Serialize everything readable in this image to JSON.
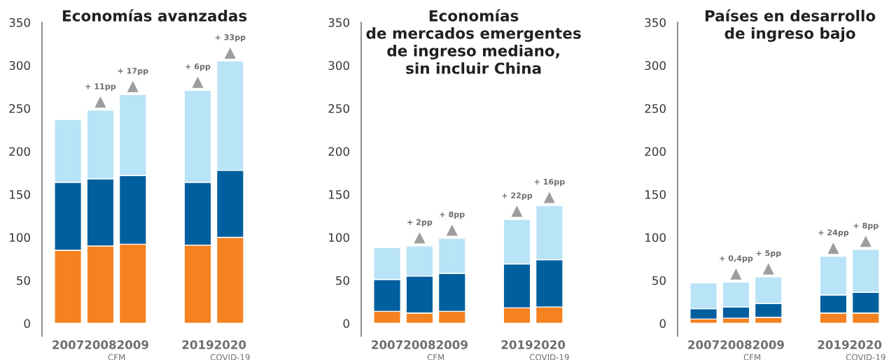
{
  "chart_data": [
    {
      "type": "bar",
      "title": "Economías avanzadas",
      "categories": [
        "2007",
        "2008",
        "2009",
        null,
        "2019",
        "2020"
      ],
      "stacked": true,
      "ylim": [
        -15,
        350
      ],
      "yticks": [
        0,
        50,
        100,
        150,
        200,
        250,
        300,
        350
      ],
      "grid": false,
      "series": [
        {
          "color": "#f58220",
          "values": [
            85,
            90,
            92,
            null,
            91,
            100
          ]
        },
        {
          "color": "#005f9e",
          "values": [
            79,
            78,
            80,
            null,
            73,
            78
          ]
        },
        {
          "color": "#b9e3f7",
          "values": [
            73,
            80,
            94,
            null,
            107,
            127
          ]
        }
      ],
      "annotations": [
        {
          "text": "+ 11pp",
          "x": "2008",
          "y": 248
        },
        {
          "text": "+ 17pp",
          "x": "2009",
          "y": 266
        },
        {
          "text": "+ 6pp",
          "x": "2019",
          "y": 271
        },
        {
          "text": "+ 33pp",
          "x": "2020",
          "y": 305
        },
        "CFM",
        "COVID-19"
      ]
    },
    {
      "type": "bar",
      "title": "Economías\nde mercados emergentes\nde ingreso mediano,\nsin incluir China",
      "categories": [
        "2007",
        "2008",
        "2009",
        null,
        "2019",
        "2020"
      ],
      "stacked": true,
      "ylim": [
        -15,
        350
      ],
      "yticks": [
        0,
        50,
        100,
        150,
        200,
        250,
        300,
        350
      ],
      "grid": false,
      "series": [
        {
          "color": "#f58220",
          "values": [
            14,
            12,
            14,
            null,
            18,
            19
          ]
        },
        {
          "color": "#005f9e",
          "values": [
            37,
            43,
            44,
            null,
            51,
            55
          ]
        },
        {
          "color": "#b9e3f7",
          "values": [
            37,
            35,
            41,
            null,
            52,
            63
          ]
        }
      ],
      "annotations": [
        {
          "text": "+ 2pp",
          "x": "2008",
          "y": 90
        },
        {
          "text": "+ 8pp",
          "x": "2009",
          "y": 99
        },
        {
          "text": "+ 22pp",
          "x": "2019",
          "y": 121
        },
        {
          "text": "+ 16pp",
          "x": "2020",
          "y": 137
        },
        "CFM",
        "COVID-19"
      ]
    },
    {
      "type": "bar",
      "title": "Países en desarrollo\nde ingreso bajo",
      "categories": [
        "2007",
        "2008",
        "2009",
        null,
        "2019",
        "2020"
      ],
      "stacked": true,
      "ylim": [
        -15,
        350
      ],
      "yticks": [
        0,
        50,
        100,
        150,
        200,
        250,
        300,
        350
      ],
      "grid": false,
      "series": [
        {
          "color": "#f58220",
          "values": [
            5,
            6,
            7,
            null,
            12,
            12
          ]
        },
        {
          "color": "#005f9e",
          "values": [
            12,
            13,
            16,
            null,
            21,
            24
          ]
        },
        {
          "color": "#b9e3f7",
          "values": [
            30,
            29,
            31,
            null,
            45,
            50
          ]
        }
      ],
      "annotations": [
        {
          "text": "+ 0,4pp",
          "x": "2008",
          "y": 48
        },
        {
          "text": "+ 5pp",
          "x": "2009",
          "y": 54
        },
        {
          "text": "+ 24pp",
          "x": "2019",
          "y": 78
        },
        {
          "text": "+ 8pp",
          "x": "2020",
          "y": 86
        },
        "CFM",
        "COVID-19"
      ]
    }
  ]
}
